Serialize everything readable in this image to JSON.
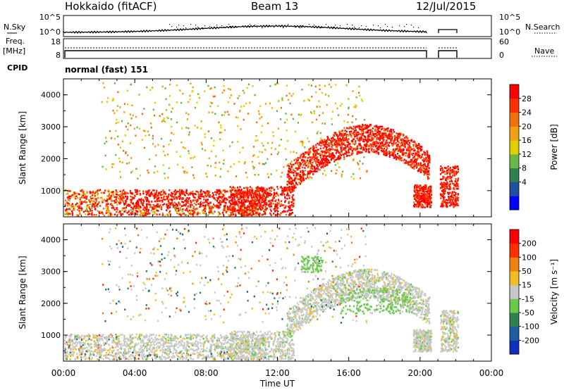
{
  "header": {
    "station": "Hokkaido (fitACF)",
    "beam": "Beam 13",
    "date": "12/Jul/2015"
  },
  "top_panels": {
    "nsky": {
      "left_label": "N.Sky",
      "left_ticks": [
        "10^5",
        "10^0"
      ],
      "right_label": "N.Search",
      "right_ticks": [
        "10^5",
        "10^0"
      ]
    },
    "freq": {
      "left_label": "Freq.",
      "left_unit": "[MHz]",
      "left_ticks": [
        "18",
        "8"
      ],
      "right_label": "Nave",
      "right_ticks": [
        "60",
        "0"
      ]
    },
    "cpid": {
      "label": "CPID",
      "value": "normal (fast) 151"
    }
  },
  "chart_data": [
    {
      "type": "heatmap",
      "name": "power",
      "ylabel": "Slant Range [km]",
      "yticks": [
        "4000",
        "3000",
        "2000",
        "1000"
      ],
      "ylim": [
        180,
        4500
      ],
      "xlim": [
        0,
        24
      ],
      "colorbar": {
        "label": "Power [dB]",
        "ticks": [
          "28",
          "24",
          "20",
          "16",
          "12",
          "8",
          "4"
        ],
        "colors": [
          "#0000ff",
          "#1f4fa0",
          "#2f7f4f",
          "#6ab84a",
          "#e0d000",
          "#f0a010",
          "#f07010",
          "#ff3000",
          "#ff0000"
        ]
      }
    },
    {
      "type": "heatmap",
      "name": "velocity",
      "ylabel": "Slant Range [km]",
      "yticks": [
        "4000",
        "3000",
        "2000",
        "1000"
      ],
      "ylim": [
        180,
        4500
      ],
      "xlim": [
        0,
        24
      ],
      "xlabel": "Time UT",
      "xticks": [
        "00:00",
        "04:00",
        "08:00",
        "12:00",
        "16:00",
        "20:00",
        "00:00"
      ],
      "colorbar": {
        "label": "Velocity [m s⁻¹]",
        "ticks": [
          "200",
          "100",
          "50",
          "15",
          "-15",
          "-50",
          "-100",
          "-200"
        ],
        "colors": [
          "#1030c0",
          "#1f5fa0",
          "#2f7f4f",
          "#6ac84a",
          "#c8c8c8",
          "#f0c020",
          "#f08010",
          "#ff3000",
          "#ff0000"
        ]
      }
    }
  ]
}
